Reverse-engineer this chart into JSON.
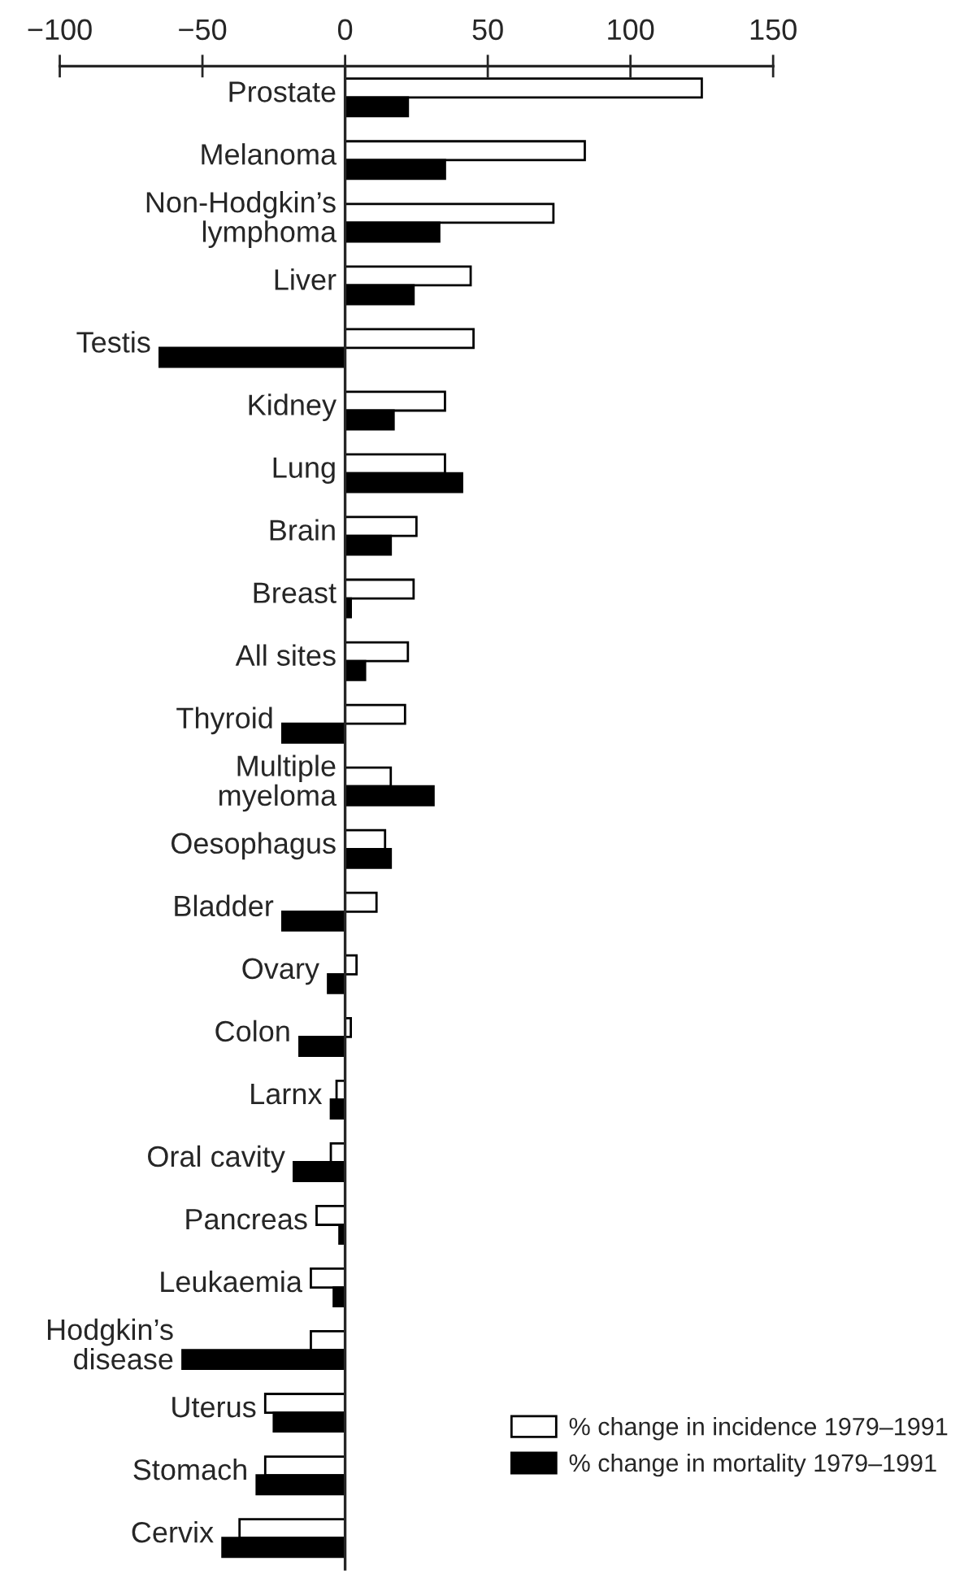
{
  "chart_data": {
    "type": "bar",
    "orientation": "horizontal",
    "categories": [
      "Prostate",
      "Melanoma",
      "Non-Hodgkin’s\nlymphoma",
      "Liver",
      "Testis",
      "Kidney",
      "Lung",
      "Brain",
      "Breast",
      "All sites",
      "Thyroid",
      "Multiple\nmyeloma",
      "Oesophagus",
      "Bladder",
      "Ovary",
      "Colon",
      "Larnx",
      "Oral cavity",
      "Pancreas",
      "Leukaemia",
      "Hodgkin’s\ndisease",
      "Uterus",
      "Stomach",
      "Cervix"
    ],
    "series": [
      {
        "name": "% change in incidence 1979–1991",
        "color": "#ffffff",
        "values": [
          125,
          84,
          73,
          44,
          45,
          35,
          35,
          25,
          24,
          22,
          21,
          16,
          14,
          11,
          4,
          2,
          -3,
          -5,
          -10,
          -12,
          -12,
          -28,
          -28,
          -37
        ]
      },
      {
        "name": "% change in mortality 1979–1991",
        "color": "#000000",
        "values": [
          22,
          35,
          33,
          24,
          -65,
          17,
          41,
          16,
          2,
          7,
          -22,
          31,
          16,
          -22,
          -6,
          -16,
          -5,
          -18,
          -2,
          -4,
          -57,
          -25,
          -31,
          -43
        ]
      }
    ],
    "xlim": [
      -100,
      150
    ],
    "xticks": [
      {
        "value": -100,
        "label": "−100"
      },
      {
        "value": -50,
        "label": "−50"
      },
      0,
      50,
      100,
      150
    ],
    "legend": "bottom right",
    "grid": false
  }
}
